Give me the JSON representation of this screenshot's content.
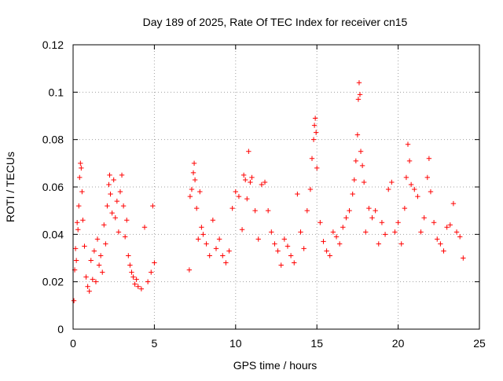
{
  "chart_data": {
    "type": "scatter",
    "title": "Day 189 of 2025, Rate Of TEC Index for receiver cn15",
    "xlabel": "GPS time / hours",
    "ylabel": "ROTI / TECUs",
    "xlim": [
      0,
      25
    ],
    "ylim": [
      0,
      0.12
    ],
    "xticks": [
      0,
      5,
      10,
      15,
      20,
      25
    ],
    "xtick_labels": [
      "0",
      "5",
      "10",
      "15",
      "20",
      "25"
    ],
    "yticks": [
      0,
      0.02,
      0.04,
      0.06,
      0.08,
      0.1,
      0.12
    ],
    "ytick_labels": [
      "0",
      "0.02",
      "0.04",
      "0.06",
      "0.08",
      "0.1",
      "0.12"
    ],
    "grid": true,
    "marker": "+",
    "series": [
      {
        "name": "ROTI",
        "color": "#ff0000",
        "data_gap_hours": [
          5.05,
          7.1
        ],
        "points": [
          [
            0.05,
            0.012
          ],
          [
            0.1,
            0.025
          ],
          [
            0.15,
            0.034
          ],
          [
            0.2,
            0.029
          ],
          [
            0.25,
            0.045
          ],
          [
            0.3,
            0.042
          ],
          [
            0.35,
            0.052
          ],
          [
            0.4,
            0.064
          ],
          [
            0.45,
            0.07
          ],
          [
            0.5,
            0.068
          ],
          [
            0.55,
            0.058
          ],
          [
            0.6,
            0.046
          ],
          [
            0.7,
            0.035
          ],
          [
            0.8,
            0.022
          ],
          [
            0.9,
            0.018
          ],
          [
            1.0,
            0.016
          ],
          [
            1.1,
            0.029
          ],
          [
            1.2,
            0.021
          ],
          [
            1.3,
            0.033
          ],
          [
            1.4,
            0.02
          ],
          [
            1.5,
            0.038
          ],
          [
            1.6,
            0.027
          ],
          [
            1.7,
            0.031
          ],
          [
            1.8,
            0.024
          ],
          [
            1.9,
            0.044
          ],
          [
            2.0,
            0.036
          ],
          [
            2.1,
            0.052
          ],
          [
            2.2,
            0.061
          ],
          [
            2.25,
            0.065
          ],
          [
            2.3,
            0.057
          ],
          [
            2.4,
            0.049
          ],
          [
            2.5,
            0.063
          ],
          [
            2.6,
            0.047
          ],
          [
            2.7,
            0.054
          ],
          [
            2.8,
            0.041
          ],
          [
            2.9,
            0.058
          ],
          [
            3.0,
            0.065
          ],
          [
            3.1,
            0.052
          ],
          [
            3.2,
            0.039
          ],
          [
            3.3,
            0.046
          ],
          [
            3.4,
            0.031
          ],
          [
            3.5,
            0.027
          ],
          [
            3.6,
            0.024
          ],
          [
            3.7,
            0.022
          ],
          [
            3.8,
            0.019
          ],
          [
            3.9,
            0.021
          ],
          [
            4.0,
            0.018
          ],
          [
            4.2,
            0.017
          ],
          [
            4.4,
            0.043
          ],
          [
            4.6,
            0.02
          ],
          [
            4.8,
            0.024
          ],
          [
            4.9,
            0.052
          ],
          [
            5.0,
            0.028
          ],
          [
            7.15,
            0.025
          ],
          [
            7.2,
            0.056
          ],
          [
            7.3,
            0.059
          ],
          [
            7.4,
            0.066
          ],
          [
            7.45,
            0.07
          ],
          [
            7.5,
            0.063
          ],
          [
            7.6,
            0.051
          ],
          [
            7.7,
            0.038
          ],
          [
            7.8,
            0.058
          ],
          [
            7.9,
            0.043
          ],
          [
            8.0,
            0.04
          ],
          [
            8.2,
            0.036
          ],
          [
            8.4,
            0.031
          ],
          [
            8.6,
            0.046
          ],
          [
            8.8,
            0.034
          ],
          [
            9.0,
            0.038
          ],
          [
            9.2,
            0.031
          ],
          [
            9.4,
            0.028
          ],
          [
            9.6,
            0.033
          ],
          [
            9.8,
            0.051
          ],
          [
            10.0,
            0.058
          ],
          [
            10.2,
            0.056
          ],
          [
            10.4,
            0.042
          ],
          [
            10.5,
            0.065
          ],
          [
            10.6,
            0.063
          ],
          [
            10.7,
            0.055
          ],
          [
            10.8,
            0.075
          ],
          [
            10.9,
            0.062
          ],
          [
            11.0,
            0.064
          ],
          [
            11.2,
            0.05
          ],
          [
            11.4,
            0.038
          ],
          [
            11.6,
            0.061
          ],
          [
            11.8,
            0.062
          ],
          [
            12.0,
            0.05
          ],
          [
            12.2,
            0.041
          ],
          [
            12.4,
            0.036
          ],
          [
            12.6,
            0.033
          ],
          [
            12.8,
            0.027
          ],
          [
            13.0,
            0.038
          ],
          [
            13.2,
            0.035
          ],
          [
            13.4,
            0.031
          ],
          [
            13.6,
            0.028
          ],
          [
            13.8,
            0.057
          ],
          [
            14.0,
            0.041
          ],
          [
            14.2,
            0.034
          ],
          [
            14.4,
            0.05
          ],
          [
            14.6,
            0.059
          ],
          [
            14.7,
            0.072
          ],
          [
            14.8,
            0.08
          ],
          [
            14.85,
            0.086
          ],
          [
            14.9,
            0.089
          ],
          [
            14.95,
            0.083
          ],
          [
            15.0,
            0.068
          ],
          [
            15.2,
            0.045
          ],
          [
            15.4,
            0.037
          ],
          [
            15.6,
            0.033
          ],
          [
            15.8,
            0.031
          ],
          [
            16.0,
            0.041
          ],
          [
            16.2,
            0.039
          ],
          [
            16.4,
            0.036
          ],
          [
            16.6,
            0.043
          ],
          [
            16.8,
            0.047
          ],
          [
            17.0,
            0.05
          ],
          [
            17.2,
            0.057
          ],
          [
            17.3,
            0.063
          ],
          [
            17.4,
            0.071
          ],
          [
            17.5,
            0.082
          ],
          [
            17.55,
            0.097
          ],
          [
            17.6,
            0.104
          ],
          [
            17.65,
            0.099
          ],
          [
            17.7,
            0.075
          ],
          [
            17.8,
            0.069
          ],
          [
            17.9,
            0.062
          ],
          [
            18.0,
            0.041
          ],
          [
            18.2,
            0.051
          ],
          [
            18.4,
            0.047
          ],
          [
            18.6,
            0.05
          ],
          [
            18.8,
            0.036
          ],
          [
            19.0,
            0.045
          ],
          [
            19.2,
            0.04
          ],
          [
            19.4,
            0.059
          ],
          [
            19.6,
            0.062
          ],
          [
            19.8,
            0.041
          ],
          [
            20.0,
            0.045
          ],
          [
            20.2,
            0.036
          ],
          [
            20.4,
            0.051
          ],
          [
            20.5,
            0.064
          ],
          [
            20.6,
            0.078
          ],
          [
            20.7,
            0.071
          ],
          [
            20.8,
            0.061
          ],
          [
            21.0,
            0.059
          ],
          [
            21.2,
            0.056
          ],
          [
            21.4,
            0.041
          ],
          [
            21.6,
            0.047
          ],
          [
            21.8,
            0.064
          ],
          [
            21.9,
            0.072
          ],
          [
            22.0,
            0.058
          ],
          [
            22.2,
            0.045
          ],
          [
            22.4,
            0.038
          ],
          [
            22.6,
            0.036
          ],
          [
            22.8,
            0.033
          ],
          [
            23.0,
            0.043
          ],
          [
            23.2,
            0.044
          ],
          [
            23.4,
            0.053
          ],
          [
            23.6,
            0.041
          ],
          [
            23.8,
            0.039
          ],
          [
            24.0,
            0.03
          ]
        ]
      }
    ]
  }
}
